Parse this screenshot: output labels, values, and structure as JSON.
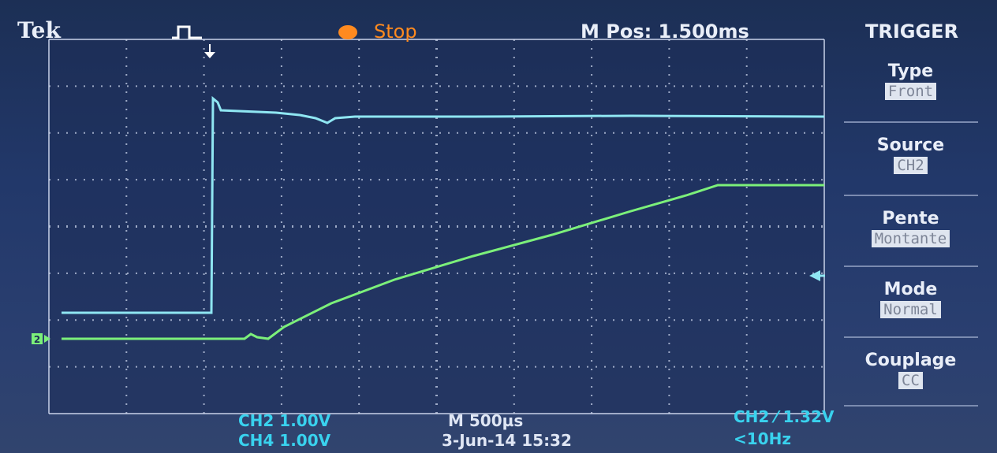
{
  "header": {
    "brand": "Tek",
    "status": "Stop",
    "position": "M Pos: 1.500ms",
    "menu_title": "TRIGGER"
  },
  "menu": [
    {
      "label": "Type",
      "value": "Front"
    },
    {
      "label": "Source",
      "value": "CH2"
    },
    {
      "label": "Pente",
      "value": "Montante"
    },
    {
      "label": "Mode",
      "value": "Normal"
    },
    {
      "label": "Couplage",
      "value": "CC"
    }
  ],
  "channel_marker": "2",
  "footer": {
    "ch2_scale": "CH2 1.00V",
    "ch4_scale": "CH4 1.00V",
    "timebase": "M 500µs",
    "datetime": "3-Jun-14 15:32",
    "trigger": "CH2 ⁄ 1.32V",
    "frequency": "<10Hz"
  }
}
